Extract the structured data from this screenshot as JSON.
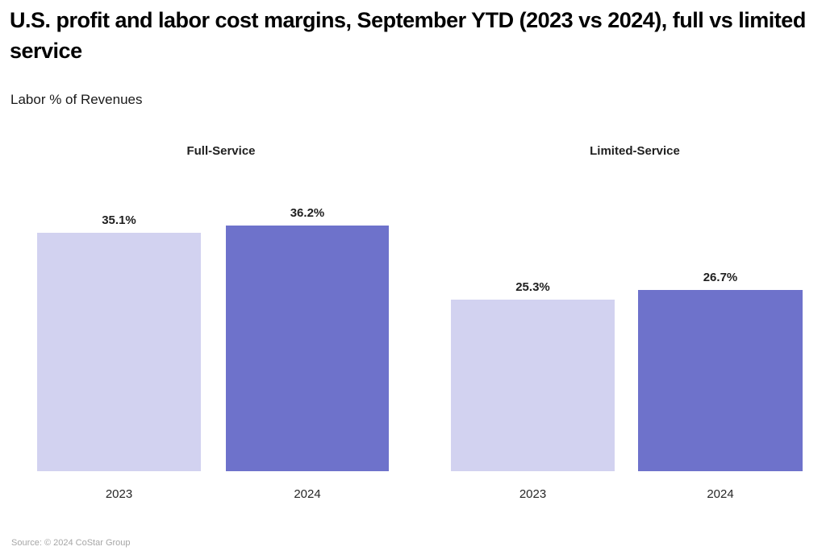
{
  "title": "U.S. profit and labor cost margins, September YTD (2023 vs 2024), full vs limited service",
  "subtitle": "Labor % of Revenues",
  "source": "Source: © 2024 CoStar Group",
  "colors": {
    "bar_2023": "#d2d2f0",
    "bar_2024": "#6e72cb",
    "title_text": "#000000",
    "value_label_text": "#1f1f1f",
    "source_text": "#a6a6a6"
  },
  "chart_data": {
    "type": "bar",
    "title": "U.S. profit and labor cost margins, September YTD (2023 vs 2024), full vs limited service",
    "subtitle": "Labor % of Revenues",
    "ylabel": "Labor % of Revenues",
    "ylim": [
      0,
      42
    ],
    "grid": false,
    "legend": "none",
    "groups": [
      {
        "label": "Full-Service",
        "categories": [
          "2023",
          "2024"
        ],
        "values": [
          35.1,
          36.2
        ],
        "value_labels": [
          "35.1%",
          "36.2%"
        ]
      },
      {
        "label": "Limited-Service",
        "categories": [
          "2023",
          "2024"
        ],
        "values": [
          25.3,
          26.7
        ],
        "value_labels": [
          "25.3%",
          "26.7%"
        ]
      }
    ],
    "source": "Source: © 2024 CoStar Group"
  }
}
